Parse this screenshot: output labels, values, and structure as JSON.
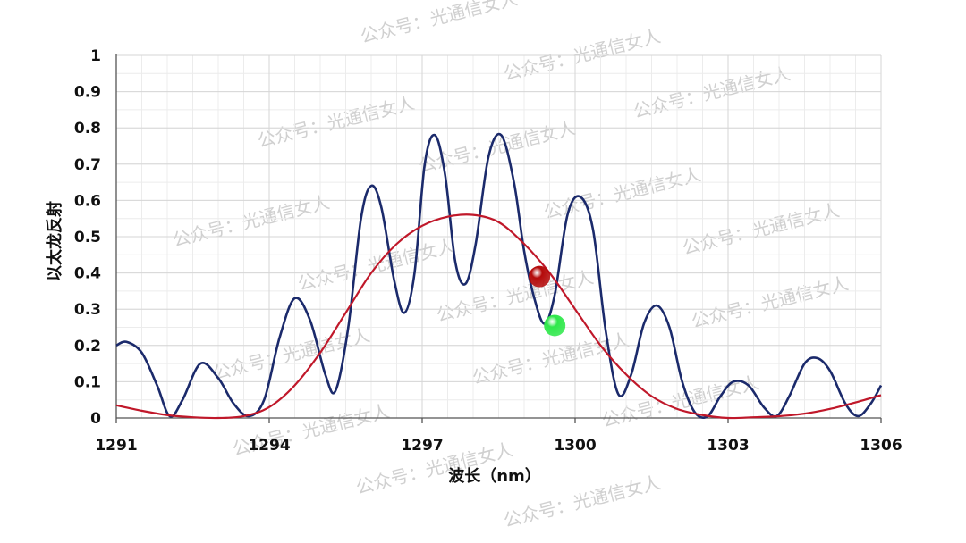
{
  "chart_data": {
    "type": "line",
    "xlabel": "波长（nm）",
    "ylabel": "以太龙反射",
    "xlim": [
      1291,
      1306
    ],
    "ylim": [
      0,
      1
    ],
    "x_ticks": [
      1291,
      1294,
      1297,
      1300,
      1303,
      1306
    ],
    "y_ticks": [
      0,
      0.1,
      0.2,
      0.3,
      0.4,
      0.5,
      0.6,
      0.7,
      0.8,
      0.9,
      1
    ],
    "y_tick_labels": [
      "0",
      "0.1",
      "0.2",
      "0.3",
      "0.4",
      "0.5",
      "0.6",
      "0.7",
      "0.8",
      "0.9",
      "1"
    ],
    "grid": true,
    "series": [
      {
        "color": "#1b2a6b",
        "points": [
          [
            1291.0,
            0.2
          ],
          [
            1291.2,
            0.21
          ],
          [
            1291.5,
            0.18
          ],
          [
            1291.8,
            0.09
          ],
          [
            1292.05,
            0.005
          ],
          [
            1292.3,
            0.05
          ],
          [
            1292.65,
            0.15
          ],
          [
            1293.0,
            0.11
          ],
          [
            1293.3,
            0.04
          ],
          [
            1293.6,
            0.005
          ],
          [
            1293.9,
            0.05
          ],
          [
            1294.2,
            0.22
          ],
          [
            1294.5,
            0.33
          ],
          [
            1294.8,
            0.27
          ],
          [
            1295.1,
            0.12
          ],
          [
            1295.3,
            0.075
          ],
          [
            1295.55,
            0.25
          ],
          [
            1295.8,
            0.55
          ],
          [
            1296.0,
            0.64
          ],
          [
            1296.2,
            0.58
          ],
          [
            1296.45,
            0.38
          ],
          [
            1296.65,
            0.29
          ],
          [
            1296.85,
            0.4
          ],
          [
            1297.05,
            0.7
          ],
          [
            1297.25,
            0.78
          ],
          [
            1297.45,
            0.67
          ],
          [
            1297.65,
            0.43
          ],
          [
            1297.85,
            0.37
          ],
          [
            1298.05,
            0.48
          ],
          [
            1298.3,
            0.72
          ],
          [
            1298.55,
            0.78
          ],
          [
            1298.8,
            0.65
          ],
          [
            1299.0,
            0.46
          ],
          [
            1299.2,
            0.33
          ],
          [
            1299.4,
            0.26
          ],
          [
            1299.6,
            0.34
          ],
          [
            1299.85,
            0.56
          ],
          [
            1300.1,
            0.61
          ],
          [
            1300.35,
            0.52
          ],
          [
            1300.6,
            0.24
          ],
          [
            1300.85,
            0.065
          ],
          [
            1301.1,
            0.12
          ],
          [
            1301.35,
            0.26
          ],
          [
            1301.6,
            0.31
          ],
          [
            1301.85,
            0.25
          ],
          [
            1302.1,
            0.1
          ],
          [
            1302.35,
            0.015
          ],
          [
            1302.6,
            0.005
          ],
          [
            1302.85,
            0.06
          ],
          [
            1303.1,
            0.1
          ],
          [
            1303.4,
            0.09
          ],
          [
            1303.7,
            0.03
          ],
          [
            1303.95,
            0.005
          ],
          [
            1304.2,
            0.06
          ],
          [
            1304.5,
            0.15
          ],
          [
            1304.75,
            0.165
          ],
          [
            1305.0,
            0.13
          ],
          [
            1305.3,
            0.04
          ],
          [
            1305.55,
            0.005
          ],
          [
            1305.8,
            0.04
          ],
          [
            1306.0,
            0.09
          ]
        ]
      },
      {
        "color": "#c0182a",
        "points": [
          [
            1291.0,
            0.035
          ],
          [
            1291.5,
            0.02
          ],
          [
            1292.0,
            0.008
          ],
          [
            1292.5,
            0.002
          ],
          [
            1293.0,
            0.0
          ],
          [
            1293.5,
            0.005
          ],
          [
            1294.0,
            0.03
          ],
          [
            1294.5,
            0.09
          ],
          [
            1295.0,
            0.18
          ],
          [
            1295.5,
            0.29
          ],
          [
            1296.0,
            0.4
          ],
          [
            1296.5,
            0.48
          ],
          [
            1297.0,
            0.53
          ],
          [
            1297.5,
            0.555
          ],
          [
            1298.0,
            0.56
          ],
          [
            1298.5,
            0.54
          ],
          [
            1299.0,
            0.48
          ],
          [
            1299.5,
            0.4
          ],
          [
            1300.0,
            0.3
          ],
          [
            1300.5,
            0.2
          ],
          [
            1301.0,
            0.12
          ],
          [
            1301.5,
            0.06
          ],
          [
            1302.0,
            0.025
          ],
          [
            1302.5,
            0.008
          ],
          [
            1303.0,
            0.0
          ],
          [
            1303.5,
            0.002
          ],
          [
            1304.0,
            0.005
          ],
          [
            1304.5,
            0.012
          ],
          [
            1305.0,
            0.025
          ],
          [
            1305.5,
            0.043
          ],
          [
            1306.0,
            0.063
          ]
        ]
      }
    ],
    "markers": [
      {
        "x": 1299.3,
        "y": 0.39,
        "color": "#b40a0a"
      },
      {
        "x": 1299.6,
        "y": 0.255,
        "color": "#2ee84a"
      }
    ]
  },
  "watermark": "公众号：光通信女人"
}
